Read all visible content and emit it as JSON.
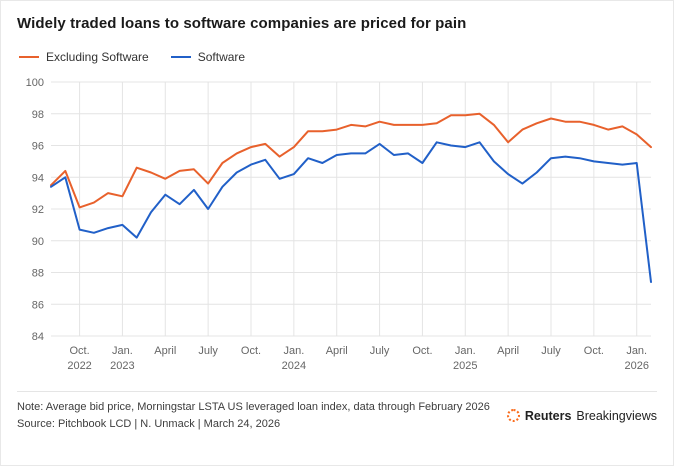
{
  "title": "Widely traded loans to software companies are priced for pain",
  "legend": [
    {
      "label": "Excluding Software",
      "color": "#e8612c"
    },
    {
      "label": "Software",
      "color": "#2160c8"
    }
  ],
  "chart_data": {
    "type": "line",
    "title": "Widely traded loans to software companies are priced for pain",
    "xlabel": "",
    "ylabel": "",
    "ylim": [
      84,
      100
    ],
    "yticks": [
      84,
      86,
      88,
      90,
      92,
      94,
      96,
      98,
      100
    ],
    "grid": true,
    "legend_position": "top",
    "x": [
      "2022-08",
      "2022-09",
      "2022-10",
      "2022-11",
      "2022-12",
      "2023-01",
      "2023-02",
      "2023-03",
      "2023-04",
      "2023-05",
      "2023-06",
      "2023-07",
      "2023-08",
      "2023-09",
      "2023-10",
      "2023-11",
      "2023-12",
      "2024-01",
      "2024-02",
      "2024-03",
      "2024-04",
      "2024-05",
      "2024-06",
      "2024-07",
      "2024-08",
      "2024-09",
      "2024-10",
      "2024-11",
      "2024-12",
      "2025-01",
      "2025-02",
      "2025-03",
      "2025-04",
      "2025-05",
      "2025-06",
      "2025-07",
      "2025-08",
      "2025-09",
      "2025-10",
      "2025-11",
      "2025-12",
      "2026-01",
      "2026-02"
    ],
    "xticks": [
      {
        "index": 2,
        "line1": "Oct.",
        "line2": "2022"
      },
      {
        "index": 5,
        "line1": "Jan.",
        "line2": "2023"
      },
      {
        "index": 8,
        "line1": "April",
        "line2": ""
      },
      {
        "index": 11,
        "line1": "July",
        "line2": ""
      },
      {
        "index": 14,
        "line1": "Oct.",
        "line2": ""
      },
      {
        "index": 17,
        "line1": "Jan.",
        "line2": "2024"
      },
      {
        "index": 20,
        "line1": "April",
        "line2": ""
      },
      {
        "index": 23,
        "line1": "July",
        "line2": ""
      },
      {
        "index": 26,
        "line1": "Oct.",
        "line2": ""
      },
      {
        "index": 29,
        "line1": "Jan.",
        "line2": "2025"
      },
      {
        "index": 32,
        "line1": "April",
        "line2": ""
      },
      {
        "index": 35,
        "line1": "July",
        "line2": ""
      },
      {
        "index": 38,
        "line1": "Oct.",
        "line2": ""
      },
      {
        "index": 41,
        "line1": "Jan.",
        "line2": "2026"
      }
    ],
    "series": [
      {
        "name": "Excluding Software",
        "color": "#e8612c",
        "values": [
          93.5,
          94.4,
          92.1,
          92.4,
          93.0,
          92.8,
          94.6,
          94.3,
          93.9,
          94.4,
          94.5,
          93.6,
          94.9,
          95.5,
          95.9,
          96.1,
          95.3,
          95.9,
          96.9,
          96.9,
          97.0,
          97.3,
          97.2,
          97.5,
          97.3,
          97.3,
          97.3,
          97.4,
          97.9,
          97.9,
          98.0,
          97.3,
          96.2,
          97.0,
          97.4,
          97.7,
          97.5,
          97.5,
          97.3,
          97.0,
          97.2,
          96.7,
          95.9
        ]
      },
      {
        "name": "Software",
        "color": "#2160c8",
        "values": [
          93.4,
          94.0,
          90.7,
          90.5,
          90.8,
          91.0,
          90.2,
          91.8,
          92.9,
          92.3,
          93.2,
          92.0,
          93.4,
          94.3,
          94.8,
          95.1,
          93.9,
          94.2,
          95.2,
          94.9,
          95.4,
          95.5,
          95.5,
          96.1,
          95.4,
          95.5,
          94.9,
          96.2,
          96.0,
          95.9,
          96.2,
          95.0,
          94.2,
          93.6,
          94.3,
          95.2,
          95.3,
          95.2,
          95.0,
          94.9,
          94.8,
          94.9,
          87.4
        ]
      }
    ]
  },
  "footer": {
    "note": "Note: Average bid price, Morningstar LSTA US leveraged loan index, data through February 2026",
    "source": "Source: Pitchbook LCD | N. Unmack | March 24, 2026",
    "logo_bold": "Reuters",
    "logo_regular": "Breakingviews"
  }
}
